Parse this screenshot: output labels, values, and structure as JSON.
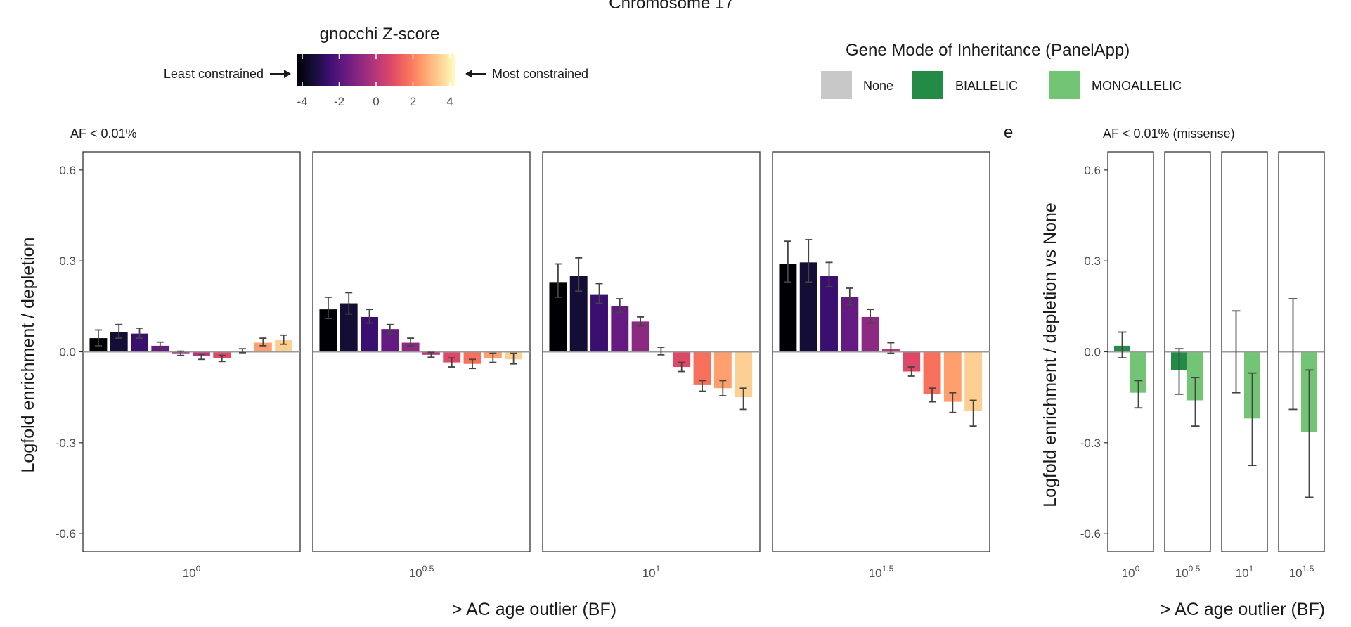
{
  "figure": {
    "top_title": "Chromosome 17",
    "panel_e_letter": "e"
  },
  "legend_gnocchi": {
    "title": "gnocchi Z-score",
    "left_label": "Least constrained",
    "right_label": "Most constrained",
    "ticks": [
      "-4",
      "-2",
      "0",
      "2",
      "4"
    ]
  },
  "legend_moi": {
    "title": "Gene Mode of Inheritance (PanelApp)",
    "items": [
      {
        "label": "None",
        "color": "#c8c8c8"
      },
      {
        "label": "BIALLELIC",
        "color": "#238b45"
      },
      {
        "label": "MONOALLELIC",
        "color": "#74c476"
      }
    ]
  },
  "colors": {
    "magma": [
      "#000004",
      "#140e36",
      "#3b0f70",
      "#641a80",
      "#8c2981",
      "#b73779",
      "#de4968",
      "#f7705c",
      "#fe9f6d",
      "#fecf92",
      "#fcfdbf"
    ]
  },
  "chart_data": [
    {
      "type": "bar",
      "panel_label": "AF < 0.01%",
      "ylabel": "Logfold enrichment / depletion",
      "xlabel": "> AC age outlier (BF)",
      "ylim": [
        -0.66,
        0.66
      ],
      "yticks": [
        {
          "v": 0.6,
          "label": "0.6"
        },
        {
          "v": 0.3,
          "label": "0.3"
        },
        {
          "v": 0.0,
          "label": "0.0"
        },
        {
          "v": -0.3,
          "label": "-0.3"
        },
        {
          "v": -0.6,
          "label": "-0.6"
        }
      ],
      "facets": [
        {
          "label_base": "10",
          "label_exp": "0",
          "values": [
            0.045,
            0.065,
            0.06,
            0.02,
            -0.005,
            -0.015,
            -0.02,
            0.003,
            0.03,
            0.04
          ],
          "err_low": [
            0.02,
            0.045,
            0.045,
            0.01,
            -0.012,
            -0.025,
            -0.032,
            -0.003,
            0.02,
            0.025
          ],
          "err_high": [
            0.072,
            0.09,
            0.078,
            0.032,
            0.002,
            -0.008,
            -0.012,
            0.01,
            0.045,
            0.055
          ]
        },
        {
          "label_base": "10",
          "label_exp": "0.5",
          "values": [
            0.14,
            0.16,
            0.115,
            0.075,
            0.03,
            -0.01,
            -0.035,
            -0.04,
            -0.02,
            -0.025
          ],
          "err_low": [
            0.11,
            0.125,
            0.095,
            0.06,
            0.02,
            -0.018,
            -0.05,
            -0.055,
            -0.035,
            -0.04
          ],
          "err_high": [
            0.18,
            0.195,
            0.14,
            0.09,
            0.045,
            -0.002,
            -0.02,
            -0.025,
            -0.005,
            -0.005
          ]
        },
        {
          "label_base": "10",
          "label_exp": "1",
          "values": [
            0.23,
            0.25,
            0.19,
            0.15,
            0.1,
            0.0,
            -0.05,
            -0.11,
            -0.12,
            -0.15
          ],
          "err_low": [
            0.18,
            0.2,
            0.16,
            0.13,
            0.085,
            -0.01,
            -0.065,
            -0.13,
            -0.145,
            -0.19
          ],
          "err_high": [
            0.29,
            0.31,
            0.225,
            0.175,
            0.115,
            0.015,
            -0.035,
            -0.095,
            -0.095,
            -0.12
          ]
        },
        {
          "label_base": "10",
          "label_exp": "1.5",
          "values": [
            0.29,
            0.295,
            0.25,
            0.18,
            0.115,
            0.01,
            -0.065,
            -0.14,
            -0.165,
            -0.195
          ],
          "err_low": [
            0.23,
            0.23,
            0.215,
            0.155,
            0.095,
            -0.005,
            -0.08,
            -0.165,
            -0.2,
            -0.245
          ],
          "err_high": [
            0.365,
            0.37,
            0.295,
            0.21,
            0.14,
            0.03,
            -0.05,
            -0.12,
            -0.135,
            -0.16
          ]
        }
      ]
    },
    {
      "type": "bar",
      "panel_label": "AF < 0.01% (missense)",
      "ylabel": "Logfold enrichment / depletion vs None",
      "xlabel": "> AC age outlier (BF)",
      "ylim": [
        -0.66,
        0.66
      ],
      "yticks": [
        {
          "v": 0.6,
          "label": "0.6"
        },
        {
          "v": 0.3,
          "label": "0.3"
        },
        {
          "v": 0.0,
          "label": "0.0"
        },
        {
          "v": -0.3,
          "label": "-0.3"
        },
        {
          "v": -0.6,
          "label": "-0.6"
        }
      ],
      "series_colors": [
        "#238b45",
        "#74c476"
      ],
      "facets": [
        {
          "label_base": "10",
          "label_exp": "0",
          "values": [
            0.02,
            -0.135
          ],
          "err_low": [
            -0.02,
            -0.185
          ],
          "err_high": [
            0.065,
            -0.095
          ]
        },
        {
          "label_base": "10",
          "label_exp": "0.5",
          "values": [
            -0.06,
            -0.16
          ],
          "err_low": [
            -0.14,
            -0.245
          ],
          "err_high": [
            0.01,
            -0.085
          ]
        },
        {
          "label_base": "10",
          "label_exp": "1",
          "values": [
            0.0,
            -0.22
          ],
          "err_low": [
            -0.135,
            -0.375
          ],
          "err_high": [
            0.135,
            -0.07
          ]
        },
        {
          "label_base": "10",
          "label_exp": "1.5",
          "values": [
            0.0,
            -0.265
          ],
          "err_low": [
            -0.19,
            -0.48
          ],
          "err_high": [
            0.175,
            -0.06
          ]
        }
      ]
    }
  ]
}
